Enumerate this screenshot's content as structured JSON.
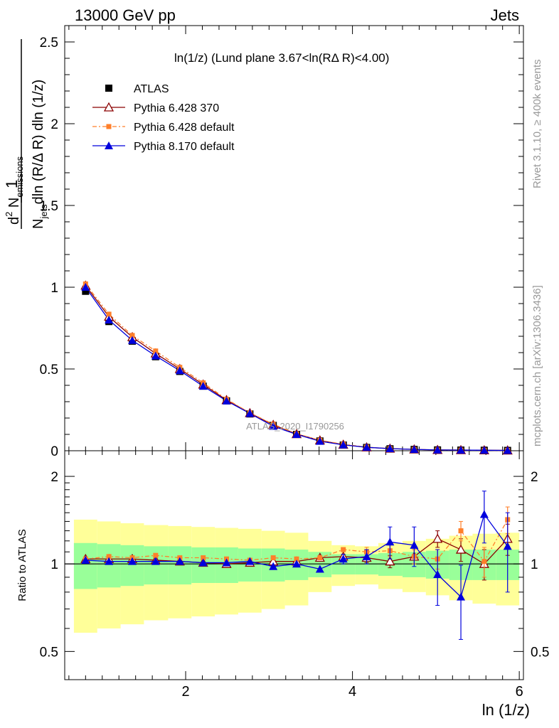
{
  "header": {
    "left": "13000 GeV pp",
    "right": "Jets"
  },
  "side": {
    "rivet": "Rivet 3.1.10, ≥ 400k events",
    "mcplots": "mcplots.cern.ch [arXiv:1306.3436]"
  },
  "watermark": "ATLAS_2020_I1790256",
  "plot_title": "ln(1/z)  (Lund plane 3.67<ln(RΔ R)<4.00)",
  "ylabel_main": "1/N_jets dln (R/Δ R) dln (1/z)  d² N_emissions",
  "ylabel_main_parts": {
    "one": "1",
    "numer": "d",
    "numer_sup": "2",
    "numer_rest": " N",
    "numer_sub": "emissions",
    "denom": "N",
    "denom_sub": "jets",
    "denom_rest": "dln (R/Δ R) dln (1/z)"
  },
  "ylabel_ratio": "Ratio to ATLAS",
  "xlabel": "ln (1/z)",
  "legend": [
    {
      "label": "ATLAS",
      "color": "#000000",
      "marker": "square"
    },
    {
      "label": "Pythia 6.428 370",
      "color": "#8b0000",
      "marker": "triangle-open"
    },
    {
      "label": "Pythia 6.428 default",
      "color": "#ff7f2a",
      "marker": "square-small"
    },
    {
      "label": "Pythia 8.170 default",
      "color": "#0000dd",
      "marker": "triangle"
    }
  ],
  "chart_data": {
    "type": "line",
    "x_ticks": [
      "2",
      "4",
      "6"
    ],
    "y_ticks_main": [
      "0",
      "0.5",
      "1",
      "1.5",
      "2",
      "2.5"
    ],
    "y_ticks_ratio": [
      "0.5",
      "1",
      "2"
    ],
    "xlim": [
      0.55,
      6.05
    ],
    "ylim_main": [
      0,
      2.6
    ],
    "ylim_ratio_log": [
      0.4,
      2.45
    ],
    "x": [
      0.8,
      1.08,
      1.36,
      1.64,
      1.93,
      2.21,
      2.49,
      2.77,
      3.05,
      3.33,
      3.61,
      3.89,
      4.17,
      4.45,
      4.74,
      5.02,
      5.3,
      5.58,
      5.86
    ],
    "bin_edges": [
      0.66,
      0.94,
      1.22,
      1.5,
      1.79,
      2.07,
      2.35,
      2.63,
      2.91,
      3.19,
      3.47,
      3.75,
      4.03,
      4.31,
      4.6,
      4.88,
      5.16,
      5.44,
      5.72,
      6.0
    ],
    "series": [
      {
        "name": "ATLAS",
        "values": [
          0.975,
          0.79,
          0.67,
          0.575,
          0.485,
          0.395,
          0.305,
          0.225,
          0.155,
          0.1,
          0.06,
          0.035,
          0.02,
          0.012,
          0.008,
          0.005,
          0.004,
          0.003,
          0.002
        ]
      },
      {
        "name": "Pythia 6.428 370",
        "values": [
          1.01,
          0.82,
          0.695,
          0.595,
          0.5,
          0.405,
          0.31,
          0.23,
          0.158,
          0.102,
          0.063,
          0.037,
          0.021,
          0.013,
          0.008,
          0.005,
          0.004,
          0.003,
          0.002
        ]
      },
      {
        "name": "Pythia 6.428 default",
        "values": [
          1.02,
          0.835,
          0.705,
          0.61,
          0.51,
          0.415,
          0.315,
          0.232,
          0.162,
          0.104,
          0.064,
          0.04,
          0.022,
          0.013,
          0.008,
          0.005,
          0.004,
          0.003,
          0.002
        ]
      },
      {
        "name": "Pythia 8.170 default",
        "values": [
          1.0,
          0.8,
          0.675,
          0.58,
          0.49,
          0.395,
          0.305,
          0.228,
          0.15,
          0.1,
          0.058,
          0.036,
          0.021,
          0.013,
          0.008,
          0.005,
          0.004,
          0.003,
          0.002
        ]
      }
    ],
    "ratio": [
      {
        "name": "Pythia 6.428 370",
        "values": [
          1.04,
          1.04,
          1.04,
          1.03,
          1.02,
          1.01,
          1.0,
          1.01,
          1.02,
          1.02,
          1.05,
          1.06,
          1.05,
          1.02,
          1.06,
          1.22,
          1.12,
          1.0,
          1.22
        ]
      },
      {
        "name": "Pythia 6.428 default",
        "values": [
          1.04,
          1.06,
          1.05,
          1.07,
          1.05,
          1.05,
          1.04,
          1.03,
          1.05,
          1.04,
          1.05,
          1.12,
          1.1,
          1.11,
          1.06,
          1.04,
          1.3,
          1.02,
          1.42
        ]
      },
      {
        "name": "Pythia 8.170 default",
        "values": [
          1.03,
          1.02,
          1.02,
          1.02,
          1.02,
          1.01,
          1.01,
          1.02,
          0.98,
          1.0,
          0.96,
          1.04,
          1.06,
          1.19,
          1.16,
          0.92,
          0.77,
          1.48,
          1.15
        ]
      }
    ],
    "ratio_errors": {
      "Pythia 6.428 370": [
        0.01,
        0.01,
        0.01,
        0.01,
        0.01,
        0.01,
        0.01,
        0.01,
        0.01,
        0.02,
        0.02,
        0.03,
        0.04,
        0.05,
        0.06,
        0.08,
        0.1,
        0.12,
        0.15
      ],
      "Pythia 6.428 default": [
        0.01,
        0.01,
        0.01,
        0.01,
        0.01,
        0.01,
        0.01,
        0.01,
        0.01,
        0.02,
        0.02,
        0.03,
        0.04,
        0.05,
        0.06,
        0.08,
        0.1,
        0.12,
        0.15
      ],
      "Pythia 8.170 default": [
        0.01,
        0.01,
        0.01,
        0.01,
        0.01,
        0.01,
        0.01,
        0.01,
        0.02,
        0.02,
        0.03,
        0.04,
        0.06,
        0.15,
        0.18,
        0.2,
        0.22,
        0.3,
        0.35
      ]
    },
    "band_inner": [
      0.18,
      0.17,
      0.16,
      0.15,
      0.15,
      0.14,
      0.14,
      0.13,
      0.13,
      0.12,
      0.1,
      0.08,
      0.08,
      0.09,
      0.1,
      0.11,
      0.12,
      0.12,
      0.12
    ],
    "band_outer": [
      0.42,
      0.4,
      0.38,
      0.36,
      0.35,
      0.34,
      0.33,
      0.32,
      0.3,
      0.28,
      0.2,
      0.16,
      0.15,
      0.18,
      0.2,
      0.22,
      0.25,
      0.27,
      0.28
    ]
  }
}
